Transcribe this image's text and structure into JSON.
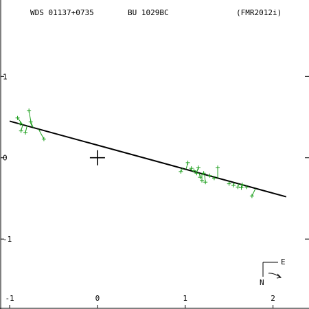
{
  "header": {
    "left": "WDS 01137+0735",
    "center": "BU 1029BC",
    "right": "(FMR2012i)"
  },
  "compass": {
    "east_label": "E",
    "north_label": "N"
  },
  "chart_data": {
    "type": "scatter",
    "title": "",
    "xlabel": "",
    "ylabel": "",
    "xlim": [
      -1.11,
      2.41
    ],
    "ylim": [
      -1.86,
      1.94
    ],
    "x_ticks": [
      -1,
      0,
      1,
      2
    ],
    "x_tick_labels": [
      "-1",
      "0",
      "1",
      "2"
    ],
    "y_ticks": [
      1,
      0,
      -1
    ],
    "y_tick_labels": [
      "1",
      "0",
      "-1"
    ],
    "grid": false,
    "primary_star": {
      "x": 0,
      "y": 0
    },
    "orbit_line": {
      "from": [
        -1.0,
        0.45
      ],
      "to": [
        2.15,
        -0.48
      ]
    },
    "observations": [
      {
        "obs": [
          -0.88,
          0.42
        ],
        "fit": [
          -0.85,
          0.41
        ]
      },
      {
        "obs": [
          -0.87,
          0.33
        ],
        "fit": [
          -0.85,
          0.41
        ]
      },
      {
        "obs": [
          -0.82,
          0.31
        ],
        "fit": [
          -0.8,
          0.4
        ]
      },
      {
        "obs": [
          -0.78,
          0.58
        ],
        "fit": [
          -0.75,
          0.39
        ]
      },
      {
        "obs": [
          -0.76,
          0.44
        ],
        "fit": [
          -0.73,
          0.37
        ]
      },
      {
        "obs": [
          -0.61,
          0.23
        ],
        "fit": [
          -0.67,
          0.35
        ]
      },
      {
        "obs": [
          -0.91,
          0.49
        ],
        "fit": [
          -0.86,
          0.42
        ]
      },
      {
        "obs": [
          0.95,
          -0.17
        ],
        "fit": [
          0.97,
          -0.13
        ]
      },
      {
        "obs": [
          1.03,
          -0.06
        ],
        "fit": [
          1.01,
          -0.14
        ]
      },
      {
        "obs": [
          1.07,
          -0.13
        ],
        "fit": [
          1.06,
          -0.15
        ]
      },
      {
        "obs": [
          1.1,
          -0.16
        ],
        "fit": [
          1.09,
          -0.17
        ]
      },
      {
        "obs": [
          1.13,
          -0.19
        ],
        "fit": [
          1.12,
          -0.18
        ]
      },
      {
        "obs": [
          1.15,
          -0.12
        ],
        "fit": [
          1.13,
          -0.18
        ]
      },
      {
        "obs": [
          1.17,
          -0.24
        ],
        "fit": [
          1.16,
          -0.19
        ]
      },
      {
        "obs": [
          1.19,
          -0.28
        ],
        "fit": [
          1.19,
          -0.2
        ]
      },
      {
        "obs": [
          1.21,
          -0.19
        ],
        "fit": [
          1.2,
          -0.2
        ]
      },
      {
        "obs": [
          1.23,
          -0.3
        ],
        "fit": [
          1.22,
          -0.21
        ]
      },
      {
        "obs": [
          1.28,
          -0.22
        ],
        "fit": [
          1.27,
          -0.22
        ]
      },
      {
        "obs": [
          1.33,
          -0.25
        ],
        "fit": [
          1.32,
          -0.24
        ]
      },
      {
        "obs": [
          1.37,
          -0.12
        ],
        "fit": [
          1.37,
          -0.25
        ]
      },
      {
        "obs": [
          1.5,
          -0.32
        ],
        "fit": [
          1.5,
          -0.29
        ]
      },
      {
        "obs": [
          1.55,
          -0.34
        ],
        "fit": [
          1.56,
          -0.31
        ]
      },
      {
        "obs": [
          1.6,
          -0.36
        ],
        "fit": [
          1.61,
          -0.32
        ]
      },
      {
        "obs": [
          1.65,
          -0.33
        ],
        "fit": [
          1.66,
          -0.34
        ]
      },
      {
        "obs": [
          1.7,
          -0.36
        ],
        "fit": [
          1.72,
          -0.36
        ]
      },
      {
        "obs": [
          1.76,
          -0.47
        ],
        "fit": [
          1.8,
          -0.38
        ]
      },
      {
        "obs": [
          1.64,
          -0.37
        ],
        "fit": [
          1.65,
          -0.33
        ]
      }
    ],
    "colors": {
      "observations": "#1a9e1a",
      "orbit": "#000000",
      "axes": "#000000"
    }
  }
}
